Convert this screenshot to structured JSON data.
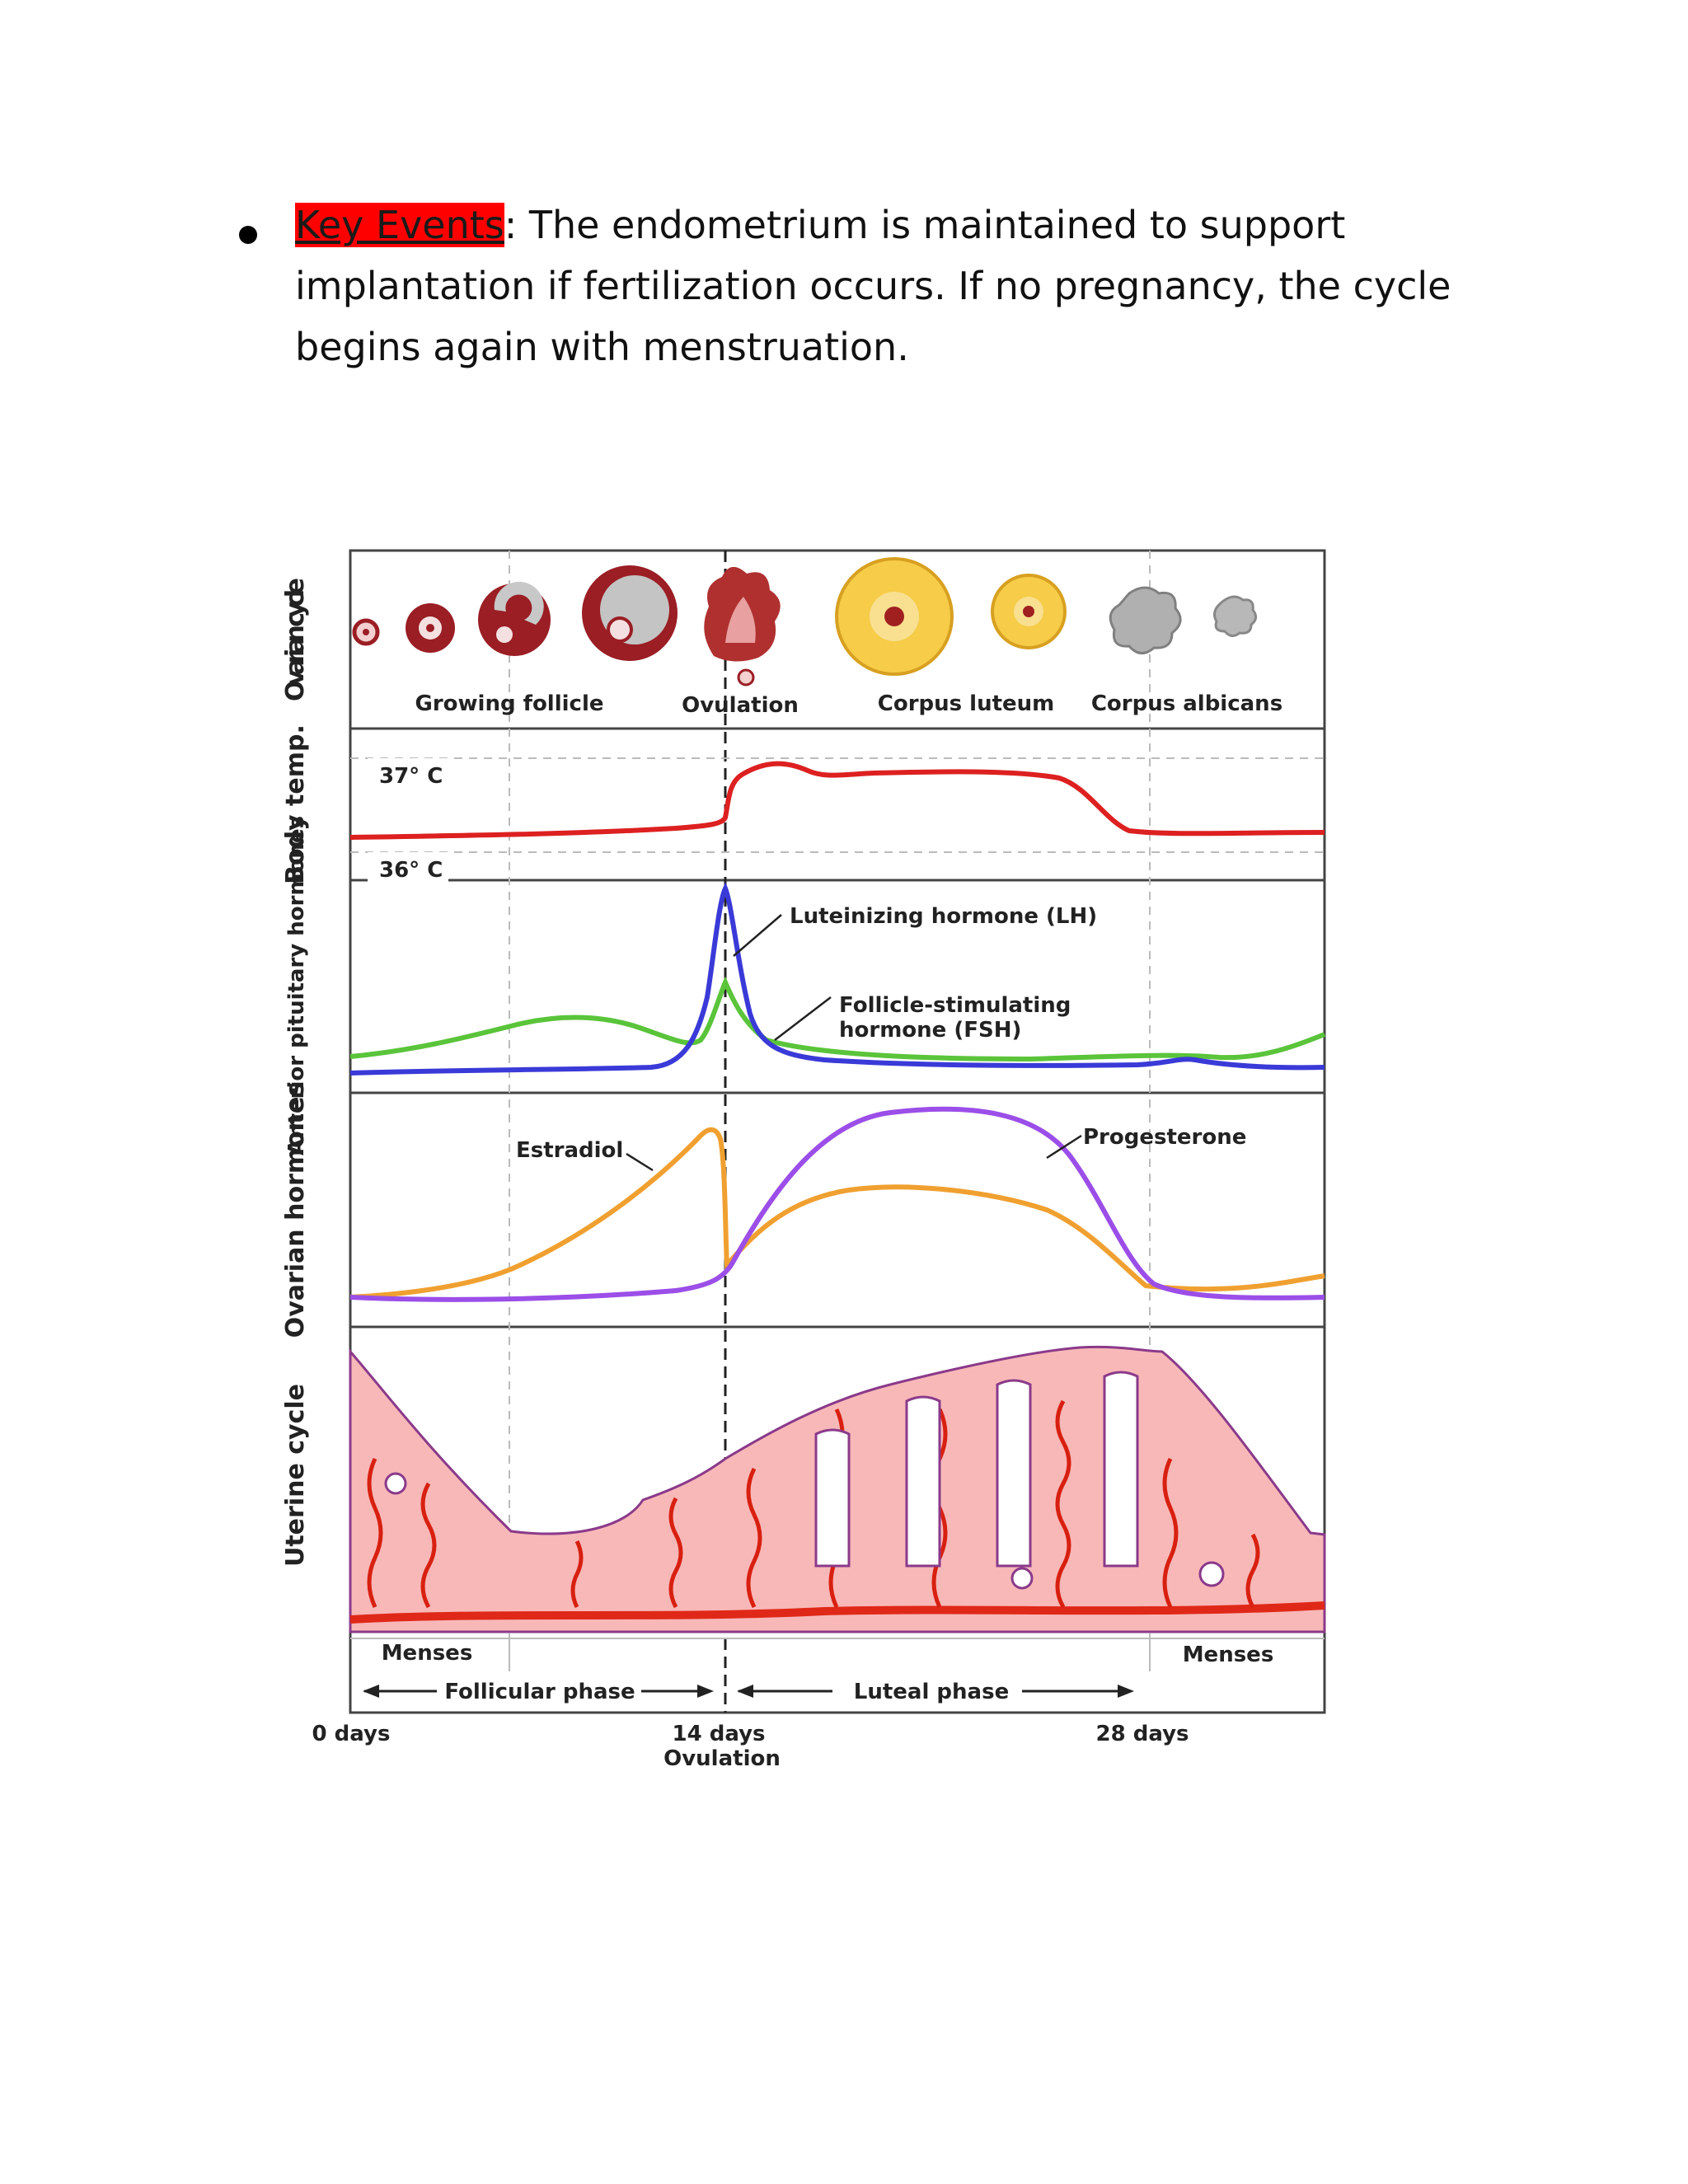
{
  "bullet": {
    "highlight": "Key Events",
    "rest": ": The endometrium is maintained to support implantation if fertilization occurs. If no pregnancy, the cycle begins again with menstruation."
  },
  "figure": {
    "rows": {
      "ovarian_cycle": "Ovarian cycle",
      "body_temp": "Body temp.",
      "anterior_pituitary": "Anterior pituitary hormones",
      "ovarian_hormones": "Ovarian hormones",
      "uterine_cycle": "Uterine cycle"
    },
    "ovarian_labels": {
      "growing_follicle": "Growing follicle",
      "ovulation": "Ovulation",
      "corpus_luteum": "Corpus luteum",
      "corpus_albicans": "Corpus albicans"
    },
    "temps": {
      "high": "37° C",
      "low": "36° C"
    },
    "hormones": {
      "lh": "Luteinizing hormone (LH)",
      "fsh_line1": "Follicle-stimulating",
      "fsh_line2": "hormone (FSH)",
      "estradiol": "Estradiol",
      "progesterone": "Progesterone"
    },
    "phases": {
      "menses_left": "Menses",
      "menses_right": "Menses",
      "follicular": "Follicular phase",
      "luteal": "Luteal phase"
    },
    "days": {
      "d0": "0 days",
      "d14": "14 days",
      "d14_sub": "Ovulation",
      "d28": "28 days"
    },
    "colors": {
      "lh": "#3a3ad8",
      "fsh": "#5ac43a",
      "estradiol": "#f0a030",
      "progesterone": "#9b4ee8",
      "temperature": "#dd2020",
      "endometrium": "#f8b8b8"
    }
  }
}
